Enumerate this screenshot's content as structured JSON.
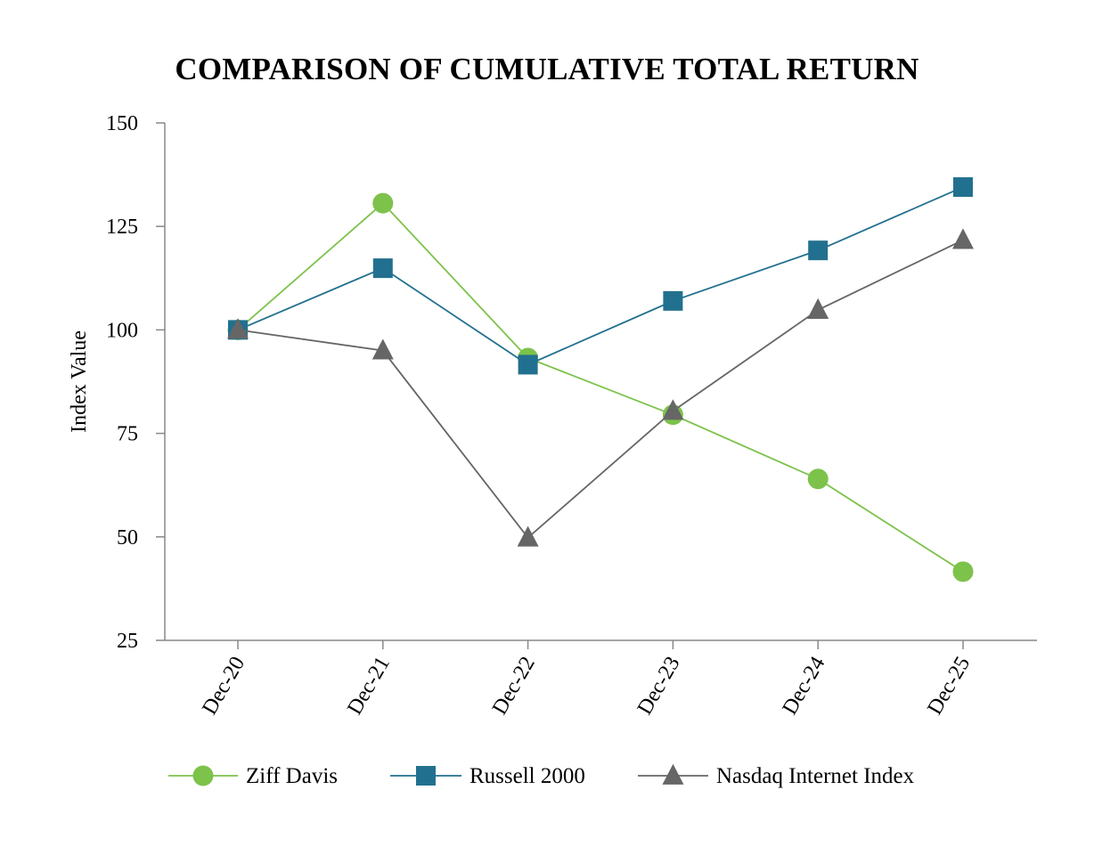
{
  "chart_data": {
    "type": "line",
    "title": "COMPARISON OF CUMULATIVE TOTAL RETURN",
    "ylabel": "Index Value",
    "xlabel": "",
    "categories": [
      "Dec-20",
      "Dec-21",
      "Dec-22",
      "Dec-23",
      "Dec-24",
      "Dec-25"
    ],
    "ylim": [
      25,
      150
    ],
    "yticks": [
      25,
      50,
      75,
      100,
      125,
      150
    ],
    "grid": false,
    "legend_position": "bottom",
    "series": [
      {
        "name": "Ziff Davis",
        "color": "#7DC24B",
        "marker": "circle",
        "values": [
          100,
          130.6,
          93.2,
          79.5,
          64.0,
          41.6
        ]
      },
      {
        "name": "Russell 2000",
        "color": "#22708F",
        "marker": "square",
        "values": [
          100,
          114.9,
          91.6,
          107.0,
          119.2,
          134.5
        ]
      },
      {
        "name": "Nasdaq Internet Index",
        "color": "#666666",
        "marker": "triangle",
        "values": [
          100,
          95.0,
          49.8,
          80.4,
          104.8,
          121.7
        ]
      }
    ]
  }
}
